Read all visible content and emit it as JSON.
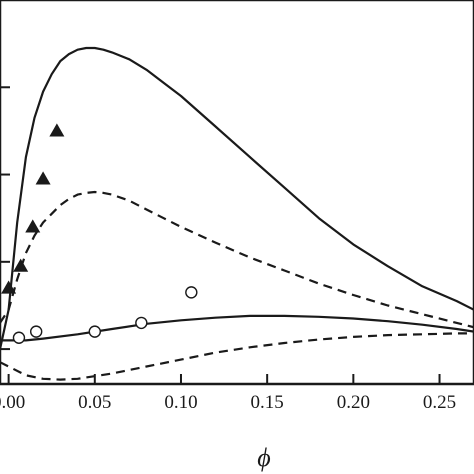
{
  "chart_data": {
    "type": "line",
    "title": "",
    "xlabel": "ϕ",
    "ylabel": "",
    "xlim": [
      -0.005,
      0.27
    ],
    "ylim": [
      -0.4,
      4.0
    ],
    "x_ticks": [
      0.0,
      0.05,
      0.1,
      0.15,
      0.2,
      0.25
    ],
    "x_tick_labels": [
      "0.00",
      "0.05",
      "0.10",
      "0.15",
      "0.20",
      "0.25"
    ],
    "grid": false,
    "legend": "none",
    "series": [
      {
        "style": "solid",
        "x": [
          -0.005,
          0.0,
          0.005,
          0.01,
          0.015,
          0.02,
          0.025,
          0.03,
          0.035,
          0.04,
          0.045,
          0.05,
          0.055,
          0.06,
          0.07,
          0.08,
          0.09,
          0.1,
          0.12,
          0.14,
          0.16,
          0.18,
          0.2,
          0.22,
          0.24,
          0.26,
          0.27
        ],
        "y": [
          0.0,
          0.45,
          1.45,
          2.2,
          2.65,
          2.95,
          3.15,
          3.3,
          3.38,
          3.43,
          3.45,
          3.45,
          3.43,
          3.4,
          3.32,
          3.2,
          3.05,
          2.9,
          2.55,
          2.2,
          1.85,
          1.5,
          1.2,
          0.95,
          0.72,
          0.55,
          0.45
        ]
      },
      {
        "style": "dashed",
        "x": [
          -0.005,
          0.0,
          0.005,
          0.01,
          0.015,
          0.02,
          0.025,
          0.03,
          0.035,
          0.04,
          0.045,
          0.05,
          0.055,
          0.06,
          0.07,
          0.08,
          0.09,
          0.1,
          0.12,
          0.14,
          0.16,
          0.18,
          0.2,
          0.22,
          0.24,
          0.26,
          0.27
        ],
        "y": [
          0.3,
          0.45,
          0.8,
          1.1,
          1.3,
          1.45,
          1.55,
          1.65,
          1.72,
          1.77,
          1.79,
          1.8,
          1.79,
          1.77,
          1.7,
          1.6,
          1.5,
          1.4,
          1.22,
          1.05,
          0.9,
          0.75,
          0.62,
          0.5,
          0.4,
          0.3,
          0.25
        ]
      },
      {
        "style": "solid",
        "x": [
          -0.005,
          0.0,
          0.01,
          0.02,
          0.04,
          0.06,
          0.08,
          0.1,
          0.12,
          0.14,
          0.16,
          0.18,
          0.2,
          0.22,
          0.24,
          0.26,
          0.27
        ],
        "y": [
          0.1,
          0.1,
          0.1,
          0.12,
          0.17,
          0.23,
          0.29,
          0.33,
          0.36,
          0.38,
          0.38,
          0.37,
          0.35,
          0.32,
          0.28,
          0.23,
          0.2
        ]
      },
      {
        "style": "dashed",
        "x": [
          -0.005,
          0.0,
          0.01,
          0.02,
          0.03,
          0.04,
          0.06,
          0.08,
          0.1,
          0.12,
          0.14,
          0.16,
          0.18,
          0.2,
          0.22,
          0.24,
          0.26,
          0.27
        ],
        "y": [
          -0.15,
          -0.2,
          -0.3,
          -0.34,
          -0.35,
          -0.34,
          -0.28,
          -0.2,
          -0.12,
          -0.04,
          0.02,
          0.07,
          0.11,
          0.14,
          0.16,
          0.17,
          0.18,
          0.18
        ]
      }
    ],
    "markers": [
      {
        "shape": "filled-triangle",
        "x": [
          0.0,
          0.007,
          0.014,
          0.02,
          0.028
        ],
        "y": [
          0.7,
          0.95,
          1.4,
          1.95,
          2.5
        ]
      },
      {
        "shape": "open-circle",
        "x": [
          0.006,
          0.016,
          0.05,
          0.077,
          0.106
        ],
        "y": [
          0.13,
          0.2,
          0.2,
          0.3,
          0.65
        ]
      }
    ]
  }
}
